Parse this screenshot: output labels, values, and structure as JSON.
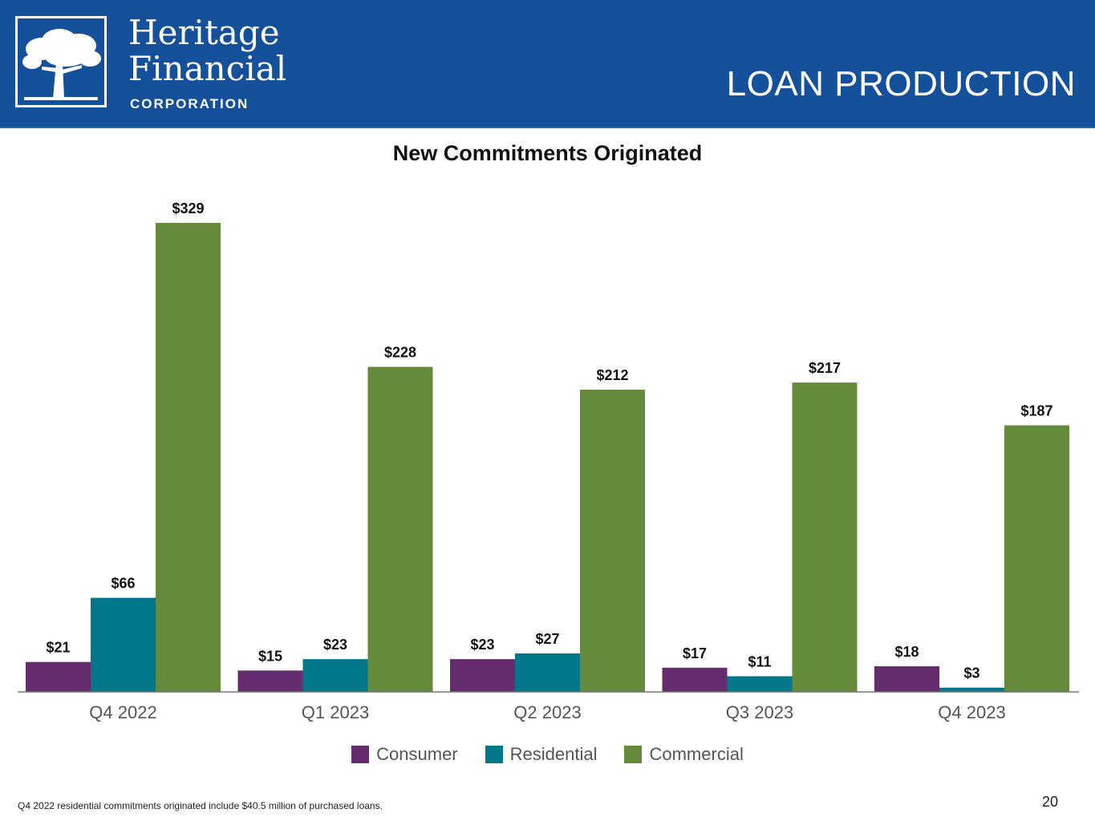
{
  "brand": {
    "name_line1": "Heritage",
    "name_line2": "Financial",
    "sub": "CORPORATION",
    "logo_icon": "tree-icon",
    "header_color": "#15509b"
  },
  "slide_title": "LOAN PRODUCTION",
  "footnote": "Q4 2022  residential commitments originated include  $40.5 million of purchased loans.",
  "page_number": "20",
  "chart_data": {
    "type": "bar",
    "title": "New Commitments Originated",
    "categories": [
      "Q4 2022",
      "Q1 2023",
      "Q2 2023",
      "Q3 2023",
      "Q4 2023"
    ],
    "series": [
      {
        "name": "Consumer",
        "color": "#662d6e",
        "values": [
          21,
          15,
          23,
          17,
          18
        ],
        "labels": [
          "$21",
          "$15",
          "$23",
          "$17",
          "$18"
        ]
      },
      {
        "name": "Residential",
        "color": "#00788a",
        "values": [
          66,
          23,
          27,
          11,
          3
        ],
        "labels": [
          "$66",
          "$23",
          "$27",
          "$11",
          "$3"
        ]
      },
      {
        "name": "Commercial",
        "color": "#658a3c",
        "values": [
          329,
          228,
          212,
          217,
          187
        ],
        "labels": [
          "$329",
          "$228",
          "$212",
          "$217",
          "$187"
        ]
      }
    ],
    "xlabel": "",
    "ylabel": "",
    "ylim": [
      0,
      329
    ],
    "grid": false,
    "legend_position": "bottom"
  }
}
